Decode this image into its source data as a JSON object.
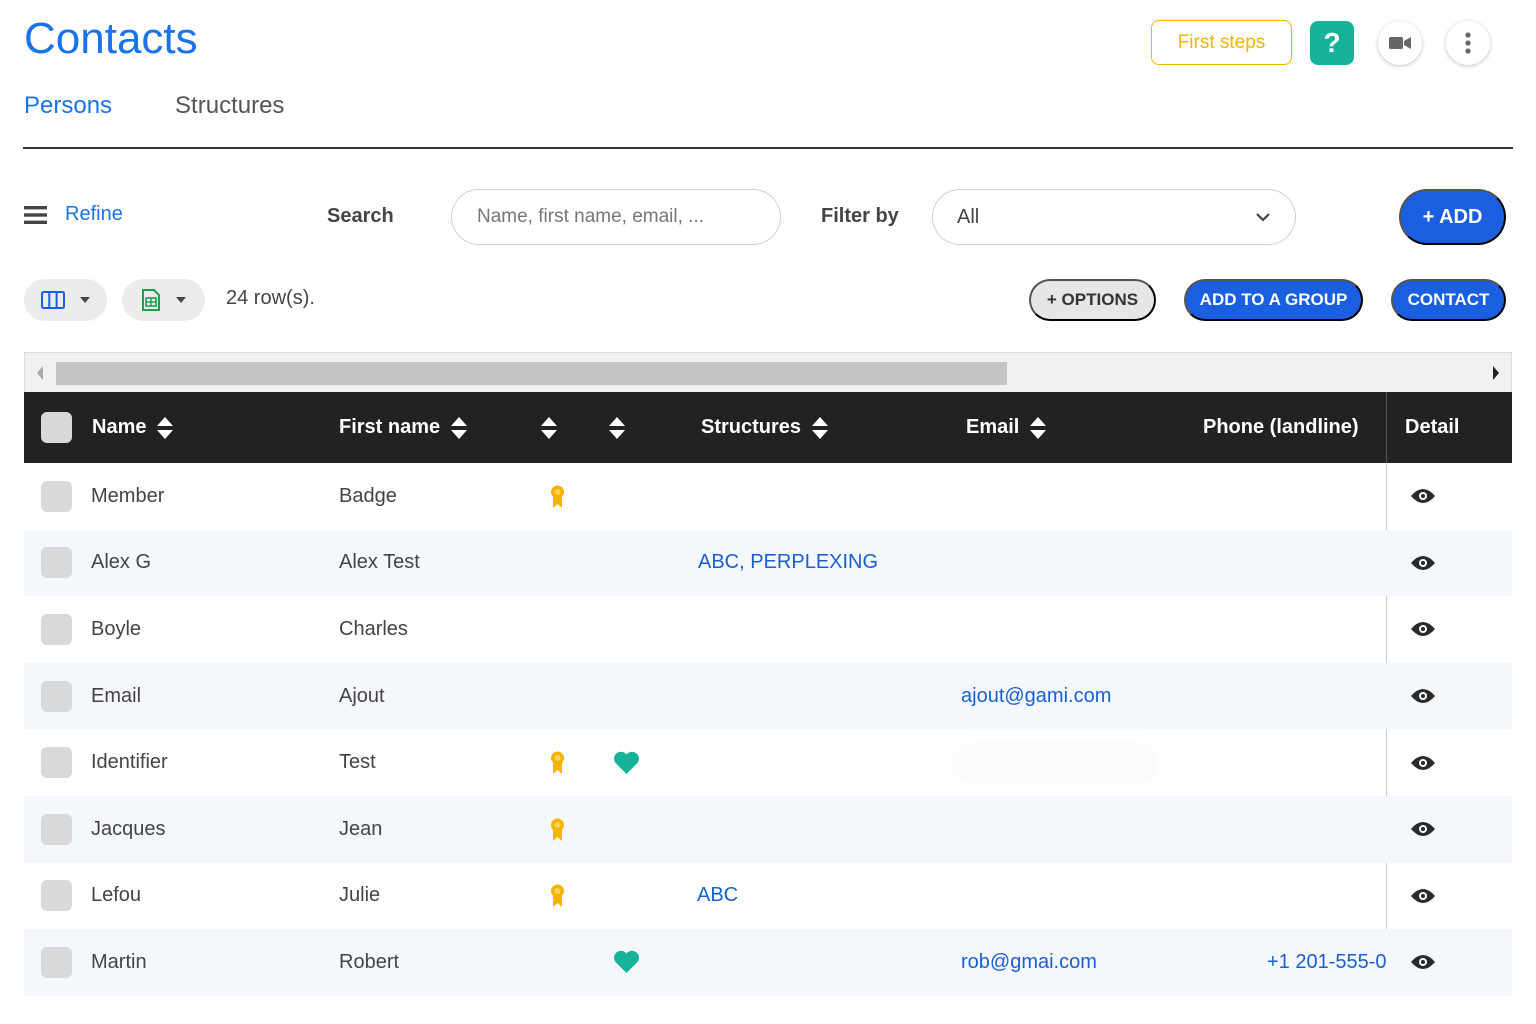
{
  "header": {
    "title": "Contacts",
    "first_steps_label": "First steps",
    "help_label": "?",
    "icons": {
      "video": "video-camera-icon",
      "more": "more-vertical-icon"
    }
  },
  "tabs": [
    {
      "label": "Persons",
      "active": true
    },
    {
      "label": "Structures",
      "active": false
    }
  ],
  "toolbar": {
    "refine_label": "Refine",
    "search_label": "Search",
    "search_placeholder": "Name, first name, email, ...",
    "filter_label": "Filter by",
    "filter_value": "All",
    "add_label": "+ ADD"
  },
  "table_toolbar": {
    "row_count": "24 row(s).",
    "options_label": "+ OPTIONS",
    "add_group_label": "ADD TO A GROUP",
    "contact_label": "CONTACT"
  },
  "table": {
    "columns": {
      "name": "Name",
      "first_name": "First name",
      "structures": "Structures",
      "email": "Email",
      "phone": "Phone (landline)",
      "detail": "Detail"
    },
    "rows": [
      {
        "name": "Member",
        "first_name": "Badge",
        "badge": true,
        "heart": false,
        "structures": "",
        "email": "",
        "phone": ""
      },
      {
        "name": "Alex G",
        "first_name": "Alex Test",
        "badge": false,
        "heart": false,
        "structures": "ABC, PERPLEXING",
        "email": "",
        "phone": ""
      },
      {
        "name": "Boyle",
        "first_name": "Charles",
        "badge": false,
        "heart": false,
        "structures": "",
        "email": "",
        "phone": ""
      },
      {
        "name": "Email",
        "first_name": "Ajout",
        "badge": false,
        "heart": false,
        "structures": "",
        "email": "ajout@gami.com",
        "phone": ""
      },
      {
        "name": "Identifier",
        "first_name": "Test",
        "badge": true,
        "heart": true,
        "structures": "",
        "email": "",
        "phone": ""
      },
      {
        "name": "Jacques",
        "first_name": "Jean",
        "badge": true,
        "heart": false,
        "structures": "",
        "email": "",
        "phone": ""
      },
      {
        "name": "Lefou",
        "first_name": "Julie",
        "badge": true,
        "heart": false,
        "structures": "ABC",
        "email": "",
        "phone": ""
      },
      {
        "name": "Martin",
        "first_name": "Robert",
        "badge": false,
        "heart": true,
        "structures": "",
        "email": "rob@gmai.com",
        "phone": "+1 201-555-0"
      }
    ]
  },
  "colors": {
    "primary": "#1a5fe0",
    "title_blue": "#1a73e8",
    "help_teal": "#16b39a",
    "first_steps_yellow": "#f4b400",
    "badge_yellow": "#f4b400",
    "heart_teal": "#16b39a",
    "header_dark": "#222222"
  }
}
